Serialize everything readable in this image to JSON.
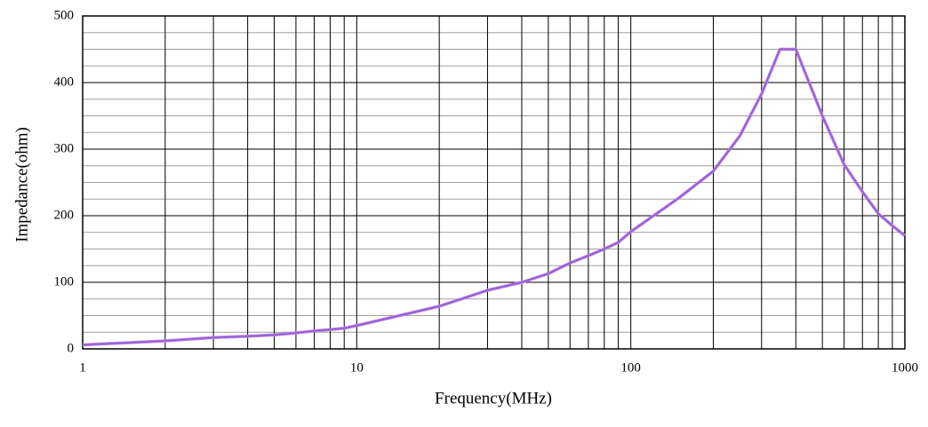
{
  "chart_data": {
    "type": "line",
    "x_label": "Frequency(MHz)",
    "y_label": "Impedance(ohm)",
    "x": [
      1,
      2,
      3,
      4,
      5,
      6,
      7,
      8,
      9,
      10,
      20,
      30,
      40,
      50,
      60,
      70,
      80,
      90,
      100,
      150,
      200,
      250,
      300,
      350,
      400,
      500,
      600,
      700,
      800,
      900,
      1000
    ],
    "series": [
      {
        "color": "#8a5fd6",
        "values": [
          6,
          12,
          17,
          19,
          21,
          24,
          27,
          29,
          31,
          35,
          64,
          88,
          100,
          113,
          129,
          140,
          150,
          160,
          176,
          227,
          267,
          320,
          383,
          450,
          450,
          350,
          277,
          236,
          203,
          185,
          170
        ]
      }
    ],
    "xlim": [
      1,
      1000
    ],
    "xticks": [
      1,
      10,
      100,
      1000
    ],
    "xscale": "log",
    "ylim": [
      0,
      500
    ],
    "yticks": [
      0,
      100,
      200,
      300,
      400,
      500
    ],
    "grid": true,
    "minor_grid": true
  }
}
